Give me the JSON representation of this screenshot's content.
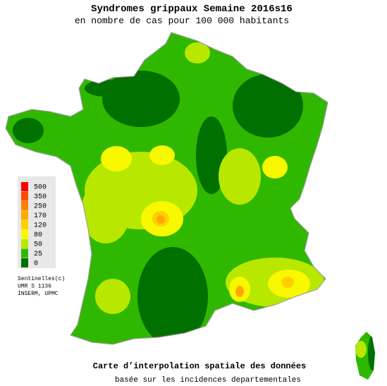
{
  "header": {
    "title": "Syndromes grippaux Semaine 2016s16",
    "subtitle": "en nombre de cas pour 100 000 habitants"
  },
  "legend": {
    "items": [
      {
        "label": "500",
        "color": "#ff0000"
      },
      {
        "label": "350",
        "color": "#ff4a00"
      },
      {
        "label": "250",
        "color": "#ff8000"
      },
      {
        "label": "170",
        "color": "#ffa800"
      },
      {
        "label": "120",
        "color": "#ffd000"
      },
      {
        "label": "80",
        "color": "#f8f800"
      },
      {
        "label": "50",
        "color": "#b8e800"
      },
      {
        "label": "25",
        "color": "#30b800"
      },
      {
        "label": "0",
        "color": "#007000"
      }
    ]
  },
  "credits": [
    "Sentinelles(c)",
    "UMR S 1136",
    "INSERM, UPMC"
  ],
  "footer": {
    "title": "Carte d’interpolation spatiale des données",
    "subtitle": "basée sur les incidences departementales"
  }
}
